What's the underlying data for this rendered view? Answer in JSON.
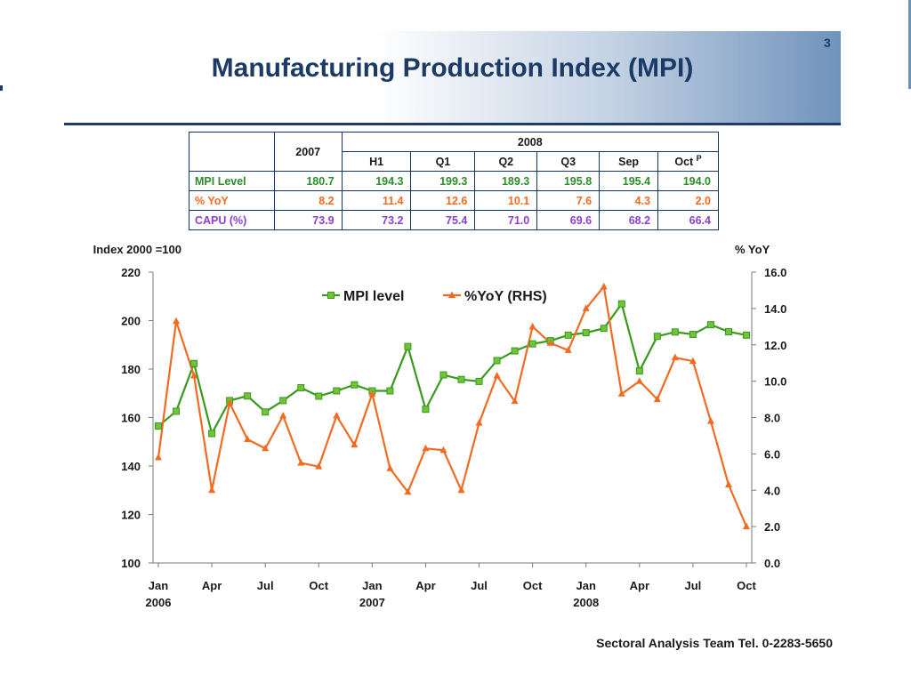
{
  "page": {
    "title": "Manufacturing Production Index (MPI)",
    "number": "3",
    "footer": "Sectoral Analysis Team Tel. 0-2283-5650"
  },
  "table": {
    "col_2007": "2007",
    "col_2008": "2008",
    "subheaders": [
      "H1",
      "Q1",
      "Q2",
      "Q3",
      "Sep",
      "Oct"
    ],
    "oct_sup": "P",
    "rows": [
      {
        "label": "MPI Level",
        "values": [
          "180.7",
          "194.3",
          "199.3",
          "189.3",
          "195.8",
          "195.4",
          "194.0"
        ]
      },
      {
        "label": "% YoY",
        "values": [
          "8.2",
          "11.4",
          "12.6",
          "10.1",
          "7.6",
          "4.3",
          "2.0"
        ]
      },
      {
        "label": "CAPU (%)",
        "values": [
          "73.9",
          "73.2",
          "75.4",
          "71.0",
          "69.6",
          "68.2",
          "66.4"
        ]
      }
    ]
  },
  "colors": {
    "mpi": "#3a9a1e",
    "yoy": "#f26b21",
    "capu": "#8a3fd1",
    "title": "#1b3a66",
    "axis": "#7a7a7a"
  },
  "chart_data": {
    "type": "line",
    "y_left_label": "Index 2000 =100",
    "y_right_label": "% YoY",
    "ylim_left": [
      100,
      220
    ],
    "yticks_left": [
      "100",
      "120",
      "140",
      "160",
      "180",
      "200",
      "220"
    ],
    "ylim_right": [
      0,
      16
    ],
    "yticks_right": [
      "0.0",
      "2.0",
      "4.0",
      "6.0",
      "8.0",
      "10.0",
      "12.0",
      "14.0",
      "16.0"
    ],
    "x_ticks": [
      {
        "i": 0,
        "label": "Jan",
        "year": "2006"
      },
      {
        "i": 3,
        "label": "Apr",
        "year": ""
      },
      {
        "i": 6,
        "label": "Jul",
        "year": ""
      },
      {
        "i": 9,
        "label": "Oct",
        "year": ""
      },
      {
        "i": 12,
        "label": "Jan",
        "year": "2007"
      },
      {
        "i": 15,
        "label": "Apr",
        "year": ""
      },
      {
        "i": 18,
        "label": "Jul",
        "year": ""
      },
      {
        "i": 21,
        "label": "Oct",
        "year": ""
      },
      {
        "i": 24,
        "label": "Jan",
        "year": "2008"
      },
      {
        "i": 27,
        "label": "Apr",
        "year": ""
      },
      {
        "i": 30,
        "label": "Jul",
        "year": ""
      },
      {
        "i": 33,
        "label": "Oct",
        "year": ""
      }
    ],
    "legend_position": "top-center",
    "series": [
      {
        "name": "MPI level",
        "axis": "left",
        "marker": "square",
        "values": [
          156.5,
          162.6,
          182.3,
          153.4,
          167.0,
          168.9,
          162.3,
          167.0,
          172.3,
          168.8,
          171.0,
          173.5,
          171.0,
          171.0,
          189.3,
          163.4,
          177.6,
          175.7,
          174.9,
          183.5,
          187.5,
          190.4,
          191.7,
          194.0,
          195.0,
          196.8,
          206.9,
          179.2,
          193.5,
          195.3,
          194.3,
          198.3,
          195.4,
          194.0
        ]
      },
      {
        "name": "%YoY (RHS)",
        "axis": "right",
        "marker": "triangle",
        "values": [
          5.8,
          13.3,
          10.3,
          4.0,
          8.8,
          6.8,
          6.3,
          8.1,
          5.5,
          5.3,
          8.1,
          6.5,
          9.3,
          5.2,
          3.9,
          6.3,
          6.2,
          4.0,
          7.7,
          10.3,
          8.9,
          13.0,
          12.1,
          11.7,
          14.0,
          15.2,
          9.3,
          10.0,
          9.0,
          11.3,
          11.1,
          7.8,
          4.3,
          2.0
        ]
      }
    ]
  }
}
